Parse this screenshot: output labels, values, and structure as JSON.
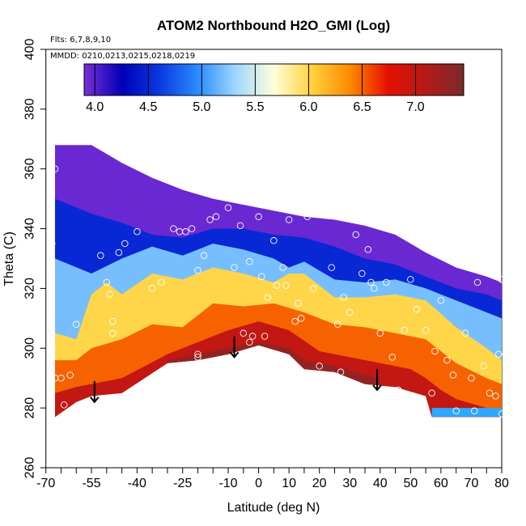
{
  "chart_data": {
    "type": "heatmap",
    "title": "ATOM2 Northbound H2O_GMI (Log)",
    "annotations": {
      "flights": "Flts: 6,7,8,9,10",
      "dates": "MMDD: 0210,0213,0215,0218,0219"
    },
    "xlabel": "Latitude (deg N)",
    "ylabel": "Theta (C)",
    "xlim": [
      -70,
      80
    ],
    "ylim": [
      260,
      400
    ],
    "x_ticks": [
      -70,
      -55,
      -40,
      -25,
      -10,
      0,
      10,
      20,
      30,
      40,
      50,
      60,
      70,
      80
    ],
    "x_minor_ticks": [
      -65,
      -60,
      -50,
      -45,
      -35,
      -30,
      -20,
      -15,
      -5,
      5,
      15,
      25,
      35,
      45,
      55,
      65,
      75
    ],
    "y_ticks": [
      260,
      280,
      300,
      320,
      340,
      360,
      380,
      400
    ],
    "colorbar": {
      "range": [
        3.9,
        7.45
      ],
      "ticks": [
        4.0,
        4.5,
        5.0,
        5.5,
        6.0,
        6.5,
        7.0
      ],
      "tick_labels": [
        "4.0",
        "4.5",
        "5.0",
        "5.5",
        "6.0",
        "6.5",
        "7.0"
      ],
      "colors": [
        "#7b2fd6",
        "#0000b8",
        "#0a3ae0",
        "#2a8cff",
        "#9fd8ff",
        "#ffffd8",
        "#ffd23c",
        "#ff8a00",
        "#e61000",
        "#b51a18",
        "#7a2a2a"
      ]
    },
    "top_boundary": [
      [
        -67,
        368
      ],
      [
        -55,
        368
      ],
      [
        -45,
        362
      ],
      [
        -35,
        357
      ],
      [
        -25,
        353
      ],
      [
        -15,
        350
      ],
      [
        -5,
        348
      ],
      [
        5,
        346
      ],
      [
        15,
        344
      ],
      [
        25,
        343
      ],
      [
        35,
        341
      ],
      [
        45,
        338
      ],
      [
        55,
        332
      ],
      [
        65,
        327
      ],
      [
        75,
        324
      ],
      [
        80,
        322
      ]
    ],
    "bottom_boundary": [
      [
        -67,
        277
      ],
      [
        -60,
        282
      ],
      [
        -55,
        284
      ],
      [
        -45,
        285
      ],
      [
        -30,
        295
      ],
      [
        -20,
        296
      ],
      [
        -10,
        298
      ],
      [
        0,
        301
      ],
      [
        10,
        298
      ],
      [
        15,
        293
      ],
      [
        25,
        292
      ],
      [
        35,
        288
      ],
      [
        45,
        287
      ],
      [
        55,
        284
      ],
      [
        57,
        277
      ],
      [
        80,
        277
      ]
    ],
    "contours": [
      {
        "level": 4.5,
        "points": [
          [
            -67,
            350
          ],
          [
            -55,
            345
          ],
          [
            -45,
            342
          ],
          [
            -35,
            338
          ],
          [
            -25,
            337
          ],
          [
            -15,
            340
          ],
          [
            -5,
            340
          ],
          [
            5,
            338
          ],
          [
            15,
            337
          ],
          [
            25,
            334
          ],
          [
            35,
            330
          ],
          [
            45,
            328
          ],
          [
            55,
            324
          ],
          [
            65,
            320
          ],
          [
            75,
            318
          ],
          [
            80,
            316
          ]
        ]
      },
      {
        "level": 5.2,
        "points": [
          [
            -67,
            330
          ],
          [
            -55,
            325
          ],
          [
            -45,
            330
          ],
          [
            -35,
            334
          ],
          [
            -25,
            331
          ],
          [
            -15,
            335
          ],
          [
            -5,
            333
          ],
          [
            5,
            330
          ],
          [
            10,
            327
          ],
          [
            15,
            329
          ],
          [
            25,
            323
          ],
          [
            35,
            322
          ],
          [
            45,
            323
          ],
          [
            55,
            320
          ],
          [
            65,
            316
          ],
          [
            75,
            312
          ],
          [
            80,
            310
          ]
        ]
      },
      {
        "level": 6.0,
        "points": [
          [
            -67,
            305
          ],
          [
            -60,
            303
          ],
          [
            -55,
            318
          ],
          [
            -50,
            322
          ],
          [
            -45,
            318
          ],
          [
            -35,
            325
          ],
          [
            -25,
            323
          ],
          [
            -15,
            327
          ],
          [
            -5,
            325
          ],
          [
            5,
            322
          ],
          [
            10,
            325
          ],
          [
            15,
            325
          ],
          [
            25,
            317
          ],
          [
            35,
            317
          ],
          [
            45,
            318
          ],
          [
            55,
            316
          ],
          [
            65,
            307
          ],
          [
            75,
            300
          ],
          [
            80,
            296
          ]
        ]
      },
      {
        "level": 6.5,
        "points": [
          [
            -67,
            296
          ],
          [
            -60,
            296
          ],
          [
            -55,
            300
          ],
          [
            -45,
            303
          ],
          [
            -35,
            308
          ],
          [
            -25,
            307
          ],
          [
            -15,
            315
          ],
          [
            -5,
            314
          ],
          [
            5,
            315
          ],
          [
            15,
            312
          ],
          [
            25,
            308
          ],
          [
            35,
            307
          ],
          [
            45,
            305
          ],
          [
            55,
            303
          ],
          [
            65,
            295
          ],
          [
            75,
            290
          ],
          [
            80,
            288
          ]
        ]
      },
      {
        "level": 7.0,
        "points": [
          [
            -67,
            285
          ],
          [
            -60,
            287
          ],
          [
            -55,
            288
          ],
          [
            -45,
            290
          ],
          [
            -30,
            298
          ],
          [
            -20,
            302
          ],
          [
            -10,
            306
          ],
          [
            0,
            309
          ],
          [
            10,
            306
          ],
          [
            20,
            299
          ],
          [
            30,
            297
          ],
          [
            40,
            295
          ],
          [
            50,
            293
          ],
          [
            55,
            290
          ],
          [
            60,
            286
          ],
          [
            65,
            283
          ],
          [
            75,
            280
          ],
          [
            80,
            279
          ]
        ]
      },
      {
        "level": 7.3,
        "points": [
          [
            -30,
            296
          ],
          [
            -20,
            298
          ],
          [
            -10,
            300
          ],
          [
            0,
            302
          ],
          [
            10,
            300
          ],
          [
            15,
            296
          ],
          [
            25,
            294
          ],
          [
            35,
            291
          ],
          [
            40,
            290
          ]
        ]
      }
    ],
    "arrows": [
      [
        -54,
        289,
        282
      ],
      [
        -8,
        304,
        297
      ],
      [
        39,
        293,
        286
      ]
    ],
    "observations": [
      [
        -67,
        360
      ],
      [
        -68,
        335
      ],
      [
        -68,
        300
      ],
      [
        -67,
        290
      ],
      [
        -65,
        290
      ],
      [
        -62,
        291
      ],
      [
        -64,
        281
      ],
      [
        -60,
        308
      ],
      [
        -52,
        331
      ],
      [
        -50,
        322
      ],
      [
        -49,
        318
      ],
      [
        -48,
        309
      ],
      [
        -48,
        305
      ],
      [
        -46,
        332
      ],
      [
        -44,
        335
      ],
      [
        -40,
        339
      ],
      [
        -35,
        320
      ],
      [
        -32,
        322
      ],
      [
        -28,
        340
      ],
      [
        -26,
        339
      ],
      [
        -24,
        339
      ],
      [
        -22,
        340
      ],
      [
        -20,
        326
      ],
      [
        -20,
        298
      ],
      [
        -20,
        297
      ],
      [
        -18,
        331
      ],
      [
        -16,
        343
      ],
      [
        -14,
        344
      ],
      [
        -10,
        347
      ],
      [
        -8,
        327
      ],
      [
        -6,
        341
      ],
      [
        -5,
        305
      ],
      [
        -3,
        329
      ],
      [
        -3,
        302
      ],
      [
        -2,
        304
      ],
      [
        0,
        344
      ],
      [
        1,
        324
      ],
      [
        2,
        304
      ],
      [
        3,
        317
      ],
      [
        5,
        336
      ],
      [
        6,
        321
      ],
      [
        7,
        297
      ],
      [
        8,
        327
      ],
      [
        9,
        321
      ],
      [
        10,
        343
      ],
      [
        12,
        309
      ],
      [
        13,
        315
      ],
      [
        14,
        310
      ],
      [
        16,
        344
      ],
      [
        18,
        320
      ],
      [
        20,
        294
      ],
      [
        22,
        347
      ],
      [
        24,
        327
      ],
      [
        26,
        308
      ],
      [
        27,
        292
      ],
      [
        28,
        317
      ],
      [
        30,
        312
      ],
      [
        32,
        338
      ],
      [
        34,
        325
      ],
      [
        36,
        333
      ],
      [
        37,
        322
      ],
      [
        38,
        320
      ],
      [
        40,
        305
      ],
      [
        42,
        322
      ],
      [
        44,
        297
      ],
      [
        46,
        286
      ],
      [
        48,
        306
      ],
      [
        50,
        323
      ],
      [
        52,
        313
      ],
      [
        55,
        306
      ],
      [
        57,
        285
      ],
      [
        58,
        299
      ],
      [
        60,
        316
      ],
      [
        62,
        296
      ],
      [
        64,
        291
      ],
      [
        65,
        279
      ],
      [
        68,
        305
      ],
      [
        70,
        290
      ],
      [
        71,
        279
      ],
      [
        72,
        322
      ],
      [
        74,
        294
      ],
      [
        76,
        285
      ],
      [
        78,
        284
      ],
      [
        79,
        298
      ],
      [
        80,
        323
      ],
      [
        80,
        278
      ]
    ]
  }
}
